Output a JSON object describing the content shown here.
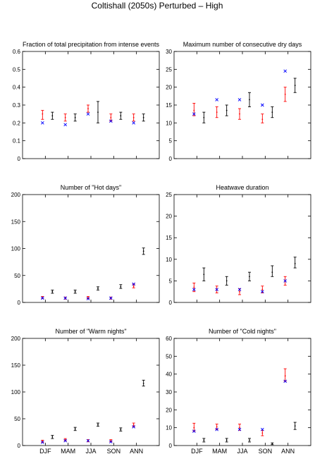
{
  "figure": {
    "title": "Coltishall (2050s) Perturbed – High"
  },
  "colors": {
    "observed": "#0000ff",
    "control": "#ff0000",
    "future": "#000000"
  },
  "chart_data": [
    {
      "type": "scatter",
      "title": "Fraction of total precipitation from intense events",
      "categories": [
        "DJF",
        "MAM",
        "JJA",
        "SON",
        "ANN"
      ],
      "show_xticklabels": false,
      "ylim": [
        0,
        0.6
      ],
      "yticks": [
        "0",
        "0.1",
        "0.2",
        "0.3",
        "0.4",
        "0.5",
        "0.6"
      ],
      "yticks_values": [
        0,
        0.1,
        0.2,
        0.3,
        0.4,
        0.5,
        0.6
      ],
      "observed": [
        0.2,
        0.19,
        0.25,
        0.21,
        0.2
      ],
      "control": [
        {
          "mid": 0.25,
          "lo": 0.22,
          "hi": 0.27
        },
        {
          "mid": 0.23,
          "lo": 0.21,
          "hi": 0.25
        },
        {
          "mid": 0.28,
          "lo": 0.26,
          "hi": 0.3
        },
        {
          "mid": 0.23,
          "lo": 0.21,
          "hi": 0.25
        },
        {
          "mid": 0.23,
          "lo": 0.21,
          "hi": 0.25
        }
      ],
      "future": [
        {
          "mid": 0.24,
          "lo": 0.22,
          "hi": 0.26
        },
        {
          "mid": 0.23,
          "lo": 0.21,
          "hi": 0.25
        },
        {
          "mid": 0.26,
          "lo": 0.2,
          "hi": 0.32
        },
        {
          "mid": 0.24,
          "lo": 0.22,
          "hi": 0.26
        },
        {
          "mid": 0.23,
          "lo": 0.21,
          "hi": 0.25
        }
      ]
    },
    {
      "type": "scatter",
      "title": "Maximum number of consecutive dry days",
      "categories": [
        "DJF",
        "MAM",
        "JJA",
        "SON",
        "ANN"
      ],
      "show_xticklabels": false,
      "ylim": [
        0,
        30
      ],
      "yticks": [
        "0",
        "5",
        "10",
        "15",
        "20",
        "25",
        "30"
      ],
      "yticks_values": [
        0,
        5,
        10,
        15,
        20,
        25,
        30
      ],
      "observed": [
        12.5,
        16.5,
        16.5,
        15.0,
        24.5
      ],
      "control": [
        {
          "mid": 13.5,
          "lo": 12,
          "hi": 15.5
        },
        {
          "mid": 13.0,
          "lo": 11.5,
          "hi": 14.5
        },
        {
          "mid": 12.5,
          "lo": 11,
          "hi": 14
        },
        {
          "mid": 11.0,
          "lo": 10,
          "hi": 12.5
        },
        {
          "mid": 18.0,
          "lo": 16,
          "hi": 20
        }
      ],
      "future": [
        {
          "mid": 11.5,
          "lo": 10,
          "hi": 13
        },
        {
          "mid": 13.5,
          "lo": 12,
          "hi": 15
        },
        {
          "mid": 16.5,
          "lo": 14.5,
          "hi": 18.5
        },
        {
          "mid": 13.0,
          "lo": 11.5,
          "hi": 14.5
        },
        {
          "mid": 20.5,
          "lo": 18.5,
          "hi": 22.5
        }
      ]
    },
    {
      "type": "scatter",
      "title": "Number of \"Hot days\"",
      "categories": [
        "DJF",
        "MAM",
        "JJA",
        "SON",
        "ANN"
      ],
      "show_xticklabels": false,
      "ylim": [
        0,
        200
      ],
      "yticks": [
        "0",
        "50",
        "100",
        "150",
        "200"
      ],
      "yticks_values": [
        0,
        50,
        100,
        150,
        200
      ],
      "observed": [
        8,
        8,
        7,
        8,
        34
      ],
      "control": [
        {
          "mid": 9,
          "lo": 7,
          "hi": 11
        },
        {
          "mid": 8,
          "lo": 6,
          "hi": 10
        },
        {
          "mid": 9,
          "lo": 7,
          "hi": 11
        },
        {
          "mid": 8,
          "lo": 6,
          "hi": 10
        },
        {
          "mid": 30,
          "lo": 27,
          "hi": 34
        }
      ],
      "future": [
        {
          "mid": 20,
          "lo": 17,
          "hi": 23
        },
        {
          "mid": 20,
          "lo": 17,
          "hi": 23
        },
        {
          "mid": 26,
          "lo": 23,
          "hi": 29
        },
        {
          "mid": 29,
          "lo": 26,
          "hi": 33
        },
        {
          "mid": 95,
          "lo": 89,
          "hi": 101
        }
      ]
    },
    {
      "type": "scatter",
      "title": "Heatwave duration",
      "categories": [
        "DJF",
        "MAM",
        "JJA",
        "SON",
        "ANN"
      ],
      "show_xticklabels": false,
      "ylim": [
        0,
        25
      ],
      "yticks": [
        "0",
        "5",
        "10",
        "15",
        "20",
        "25"
      ],
      "yticks_values": [
        0,
        5,
        10,
        15,
        20,
        25
      ],
      "observed": [
        3,
        3,
        3,
        2.5,
        5
      ],
      "control": [
        {
          "mid": 3.5,
          "lo": 2.5,
          "hi": 4.5
        },
        {
          "mid": 3,
          "lo": 2.2,
          "hi": 3.8
        },
        {
          "mid": 2.5,
          "lo": 1.8,
          "hi": 3.2
        },
        {
          "mid": 3,
          "lo": 2.2,
          "hi": 3.8
        },
        {
          "mid": 5,
          "lo": 4,
          "hi": 6
        }
      ],
      "future": [
        {
          "mid": 6.5,
          "lo": 5,
          "hi": 8
        },
        {
          "mid": 5,
          "lo": 4,
          "hi": 6
        },
        {
          "mid": 6,
          "lo": 5,
          "hi": 7
        },
        {
          "mid": 7,
          "lo": 6,
          "hi": 8.5
        },
        {
          "mid": 9,
          "lo": 8,
          "hi": 10.5
        }
      ]
    },
    {
      "type": "scatter",
      "title": "Number of \"Warm nights\"",
      "categories": [
        "DJF",
        "MAM",
        "JJA",
        "SON",
        "ANN"
      ],
      "show_xticklabels": true,
      "ylim": [
        0,
        200
      ],
      "yticks": [
        "0",
        "50",
        "100",
        "150",
        "200"
      ],
      "yticks_values": [
        0,
        50,
        100,
        150,
        200
      ],
      "observed": [
        6,
        9,
        9,
        7,
        35
      ],
      "control": [
        {
          "mid": 8,
          "lo": 6,
          "hi": 10
        },
        {
          "mid": 11,
          "lo": 9,
          "hi": 13
        },
        {
          "mid": 9,
          "lo": 7,
          "hi": 11
        },
        {
          "mid": 9,
          "lo": 7,
          "hi": 11
        },
        {
          "mid": 38,
          "lo": 35,
          "hi": 42
        }
      ],
      "future": [
        {
          "mid": 16,
          "lo": 13,
          "hi": 19
        },
        {
          "mid": 31,
          "lo": 28,
          "hi": 34
        },
        {
          "mid": 39,
          "lo": 36,
          "hi": 42
        },
        {
          "mid": 30,
          "lo": 27,
          "hi": 33
        },
        {
          "mid": 116,
          "lo": 111,
          "hi": 122
        }
      ]
    },
    {
      "type": "scatter",
      "title": "Number of \"Cold nights\"",
      "categories": [
        "DJF",
        "MAM",
        "JJA",
        "SON",
        "ANN"
      ],
      "show_xticklabels": true,
      "ylim": [
        0,
        60
      ],
      "yticks": [
        "0",
        "10",
        "20",
        "30",
        "40",
        "50",
        "60"
      ],
      "yticks_values": [
        0,
        10,
        20,
        30,
        40,
        50,
        60
      ],
      "observed": [
        8,
        9,
        9,
        9,
        36
      ],
      "control": [
        {
          "mid": 10,
          "lo": 8,
          "hi": 12.5
        },
        {
          "mid": 10.5,
          "lo": 9,
          "hi": 12
        },
        {
          "mid": 10,
          "lo": 8.5,
          "hi": 12
        },
        {
          "mid": 7,
          "lo": 5.5,
          "hi": 8.5
        },
        {
          "mid": 39,
          "lo": 36,
          "hi": 43
        }
      ],
      "future": [
        {
          "mid": 3,
          "lo": 2,
          "hi": 4
        },
        {
          "mid": 3,
          "lo": 2,
          "hi": 4
        },
        {
          "mid": 3,
          "lo": 2,
          "hi": 4
        },
        {
          "mid": 1,
          "lo": 0.5,
          "hi": 1.5
        },
        {
          "mid": 11,
          "lo": 9,
          "hi": 13
        }
      ]
    }
  ]
}
